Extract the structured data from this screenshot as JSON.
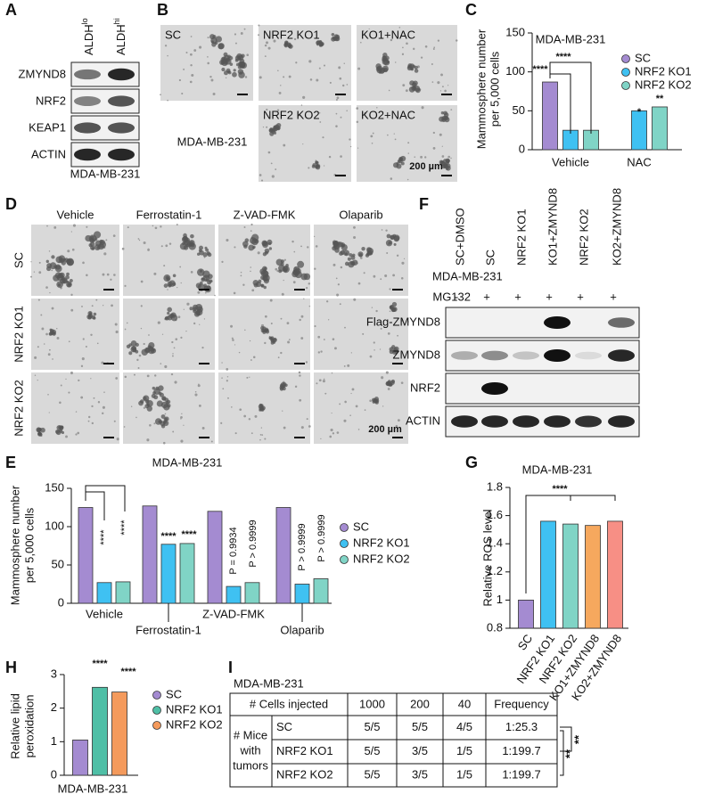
{
  "blot_a": {
    "panel": "A",
    "columns": [
      {
        "main": "ALDH",
        "sup": "lo"
      },
      {
        "main": "ALDH",
        "sup": "hi"
      }
    ],
    "rows": [
      "ZMYND8",
      "NRF2",
      "KEAP1",
      "ACTIN"
    ],
    "cell_line": "MDA-MB-231"
  },
  "micrographs_b": {
    "panel": "B",
    "cells": [
      "SC",
      "NRF2 KO1",
      "KO1+NAC",
      "NRF2 KO2",
      "KO2+NAC"
    ],
    "cell_line": "MDA-MB-231",
    "scale_bar": "200 µm"
  },
  "micrographs_d": {
    "panel": "D",
    "columns": [
      "Vehicle",
      "Ferrostatin-1",
      "Z-VAD-FMK",
      "Olaparib"
    ],
    "rows": [
      "SC",
      "NRF2 KO1",
      "NRF2 KO2"
    ],
    "scale_bar": "200 µm"
  },
  "blot_f": {
    "panel": "F",
    "cell_line": "MDA-MB-231",
    "columns": [
      "SC+DMSO",
      "SC",
      "NRF2 KO1",
      "KO1+ZMYND8",
      "NRF2 KO2",
      "KO2+ZMYND8"
    ],
    "treatment_label": "MG132",
    "treatment": [
      "-",
      "+",
      "+",
      "+",
      "+",
      "+"
    ],
    "rows": [
      "Flag-ZMYND8",
      "ZMYND8",
      "NRF2",
      "ACTIN"
    ]
  },
  "chart_data": [
    {
      "type": "bar",
      "panel": "C",
      "title": "MDA-MB-231",
      "y_label": [
        "Mammosphere number",
        "per 5,000 cells"
      ],
      "categories": [
        "Vehicle",
        "NAC"
      ],
      "series": [
        {
          "name": "SC",
          "color": "#a48bd1",
          "values": [
            87,
            null
          ]
        },
        {
          "name": "NRF2 KO1",
          "color": "#3fc1f2",
          "values": [
            25,
            50
          ]
        },
        {
          "name": "NRF2 KO2",
          "color": "#80d4c6",
          "values": [
            25,
            55
          ]
        }
      ],
      "ylim": [
        0,
        150
      ],
      "yticks": [
        0,
        50,
        100,
        150
      ],
      "annotations": [
        "****",
        "****",
        "*",
        "**"
      ]
    },
    {
      "type": "bar",
      "panel": "E",
      "title": "MDA-MB-231",
      "y_label": [
        "Mammosphere number",
        "per 5,000 cells"
      ],
      "categories": [
        "Vehicle",
        "Ferrostatin-1",
        "Z-VAD-FMK",
        "Olaparib"
      ],
      "series": [
        {
          "name": "SC",
          "color": "#a48bd1",
          "values": [
            125,
            127,
            120,
            125
          ]
        },
        {
          "name": "NRF2 KO1",
          "color": "#3fc1f2",
          "values": [
            27,
            77,
            22,
            25
          ]
        },
        {
          "name": "NRF2 KO2",
          "color": "#80d4c6",
          "values": [
            28,
            78,
            27,
            32
          ]
        }
      ],
      "ylim": [
        0,
        150
      ],
      "yticks": [
        0,
        50,
        100,
        150
      ],
      "annotations": [
        "****",
        "****",
        "****",
        "****",
        "P = 0.9934",
        "P > 0.9999",
        "P > 0.9999",
        "P > 0.9999"
      ]
    },
    {
      "type": "bar",
      "panel": "G",
      "title": "MDA-MB-231",
      "y_label": [
        "Relative ROS level"
      ],
      "categories": [
        "SC",
        "NRF2 KO1",
        "NRF2 KO2",
        "KO1+ZMYND8",
        "KO2+ZMYND8"
      ],
      "values": [
        1.0,
        1.56,
        1.54,
        1.53,
        1.56
      ],
      "colors": [
        "#a48bd1",
        "#3fc1f2",
        "#80d4c6",
        "#f6a85e",
        "#f78f85"
      ],
      "ylim": [
        0.8,
        1.8
      ],
      "yticks": [
        0.8,
        1,
        1.2,
        1.4,
        1.6,
        1.8
      ],
      "annotations": [
        "****"
      ]
    },
    {
      "type": "bar",
      "panel": "H",
      "y_label": [
        "Relative lipid",
        "peroxidation"
      ],
      "categories": [
        "MDA-MB-231"
      ],
      "series": [
        {
          "name": "SC",
          "color": "#a48bd1",
          "values": [
            1.05
          ]
        },
        {
          "name": "NRF2 KO1",
          "color": "#4fbfa6",
          "values": [
            2.62
          ]
        },
        {
          "name": "NRF2 KO2",
          "color": "#f49a5c",
          "values": [
            2.48
          ]
        }
      ],
      "ylim": [
        0,
        3
      ],
      "yticks": [
        0,
        1,
        2,
        3
      ],
      "annotations": [
        "****",
        "****"
      ]
    }
  ],
  "table_i": {
    "panel": "I",
    "title": "MDA-MB-231",
    "header": [
      "# Cells injected",
      "1000",
      "200",
      "40",
      "Frequency"
    ],
    "group_label": [
      "# Mice",
      "with",
      "tumors"
    ],
    "rows": [
      [
        "SC",
        "5/5",
        "5/5",
        "4/5",
        "1:25.3"
      ],
      [
        "NRF2 KO1",
        "5/5",
        "3/5",
        "1/5",
        "1:199.7"
      ],
      [
        "NRF2 KO2",
        "5/5",
        "3/5",
        "1/5",
        "1:199.7"
      ]
    ],
    "significance": [
      "**",
      "**"
    ]
  }
}
